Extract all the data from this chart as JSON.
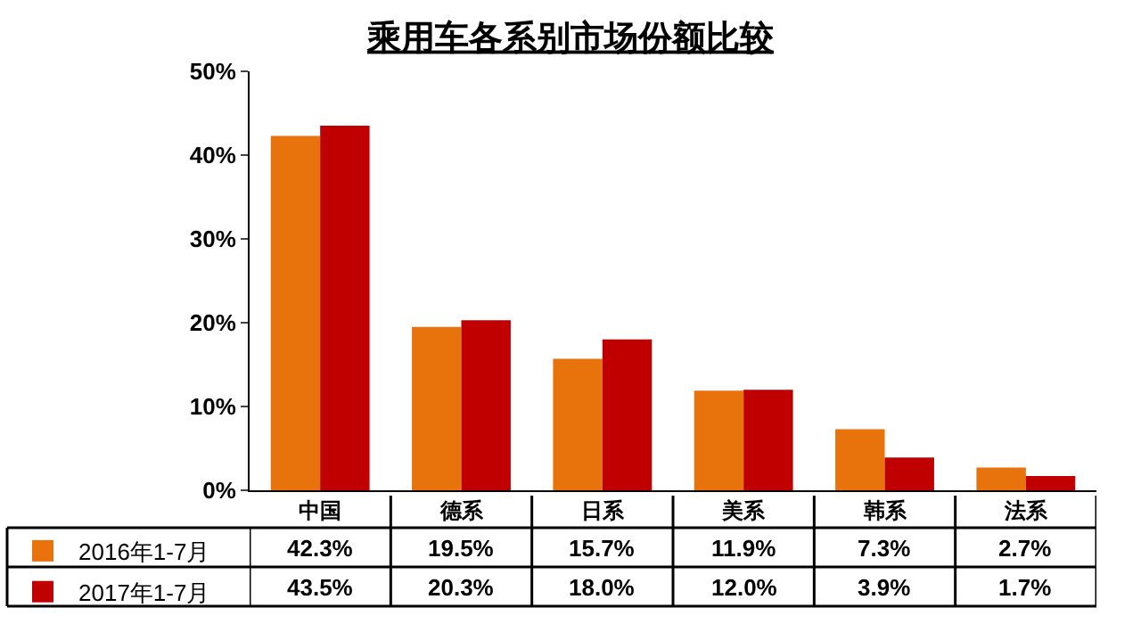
{
  "chart_data": {
    "type": "bar",
    "title": "乘用车各系别市场份额比较",
    "categories": [
      "中国",
      "德系",
      "日系",
      "美系",
      "韩系",
      "法系"
    ],
    "series": [
      {
        "name": "2016年1-7月",
        "color": "#e8720c",
        "values": [
          42.3,
          19.5,
          15.7,
          11.9,
          7.3,
          2.7
        ],
        "value_labels": [
          "42.3%",
          "19.5%",
          "15.7%",
          "11.9%",
          "7.3%",
          "2.7%"
        ]
      },
      {
        "name": "2017年1-7月",
        "color": "#c00000",
        "values": [
          43.5,
          20.3,
          18.0,
          12.0,
          3.9,
          1.7
        ],
        "value_labels": [
          "43.5%",
          "20.3%",
          "18.0%",
          "12.0%",
          "3.9%",
          "1.7%"
        ]
      }
    ],
    "ylim": [
      0,
      50
    ],
    "yticks": [
      {
        "value": 0,
        "label": "0%"
      },
      {
        "value": 10,
        "label": "10%"
      },
      {
        "value": 20,
        "label": "20%"
      },
      {
        "value": 30,
        "label": "30%"
      },
      {
        "value": 40,
        "label": "40%"
      },
      {
        "value": 50,
        "label": "50%"
      }
    ],
    "legend": "bottom left"
  }
}
